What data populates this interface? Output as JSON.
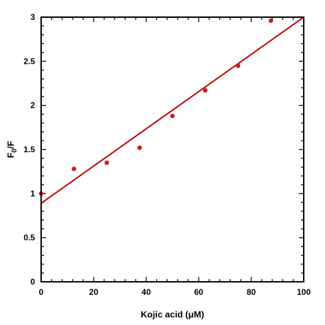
{
  "chart_data": {
    "type": "scatter",
    "xlabel": "Kojic acid (μM)",
    "ylabel_main": "F",
    "ylabel_sub": "0",
    "ylabel_tail": "/F",
    "xlim": [
      0,
      100
    ],
    "ylim": [
      0,
      3
    ],
    "xticks": [
      0,
      20,
      40,
      60,
      80,
      100
    ],
    "yticks": [
      0,
      0.5,
      1,
      1.5,
      2,
      2.5,
      3
    ],
    "xtick_labels": [
      "0",
      "20",
      "40",
      "60",
      "80",
      "100"
    ],
    "ytick_labels": [
      "0",
      "0.5",
      "1",
      "1.5",
      "2",
      "2.5",
      "3"
    ],
    "grid": false,
    "marker_color": "#cc1f1f",
    "line_color": "#c00000",
    "points": [
      {
        "x": 0,
        "y": 1.0
      },
      {
        "x": 12.5,
        "y": 1.28
      },
      {
        "x": 25,
        "y": 1.35
      },
      {
        "x": 37.5,
        "y": 1.52
      },
      {
        "x": 50,
        "y": 1.88
      },
      {
        "x": 62.5,
        "y": 2.17
      },
      {
        "x": 75,
        "y": 2.45
      },
      {
        "x": 87.5,
        "y": 2.96
      }
    ],
    "fit_line": {
      "x": [
        0,
        100
      ],
      "y": [
        0.89,
        3.0
      ]
    }
  }
}
